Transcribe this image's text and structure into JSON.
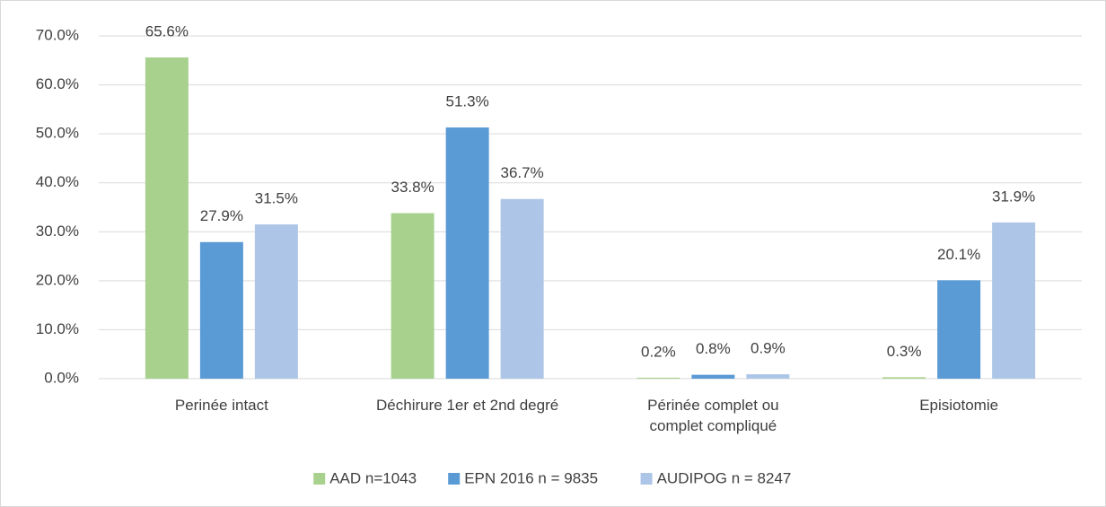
{
  "chart_data": {
    "type": "bar",
    "categories": [
      "Perinée intact",
      "Déchirure 1er et 2nd degré",
      "Périnée complet ou complet compliqué",
      "Episiotomie"
    ],
    "series": [
      {
        "name": "AAD n=1043",
        "color": "#a9d18e",
        "values": [
          65.6,
          33.8,
          0.2,
          0.3
        ],
        "value_labels": [
          "65.6%",
          "33.8%",
          "0.2%",
          "0.3%"
        ]
      },
      {
        "name": "EPN 2016 n = 9835",
        "color": "#5b9bd5",
        "values": [
          27.9,
          51.3,
          0.8,
          20.1
        ],
        "value_labels": [
          "27.9%",
          "51.3%",
          "0.8%",
          "20.1%"
        ]
      },
      {
        "name": "AUDIPOG n = 8247",
        "color": "#adc6e8",
        "values": [
          31.5,
          36.7,
          0.9,
          31.9
        ],
        "value_labels": [
          "31.5%",
          "36.7%",
          "0.9%",
          "31.9%"
        ]
      }
    ],
    "ylim": [
      0,
      70
    ],
    "yticks": [
      {
        "value": 0,
        "label": "0.0%"
      },
      {
        "value": 10,
        "label": "10.0%"
      },
      {
        "value": 20,
        "label": "20.0%"
      },
      {
        "value": 30,
        "label": "30.0%"
      },
      {
        "value": 40,
        "label": "40.0%"
      },
      {
        "value": 50,
        "label": "50.0%"
      },
      {
        "value": 60,
        "label": "60.0%"
      },
      {
        "value": 70,
        "label": "70.0%"
      }
    ],
    "grid": true,
    "legend": "bottom"
  }
}
